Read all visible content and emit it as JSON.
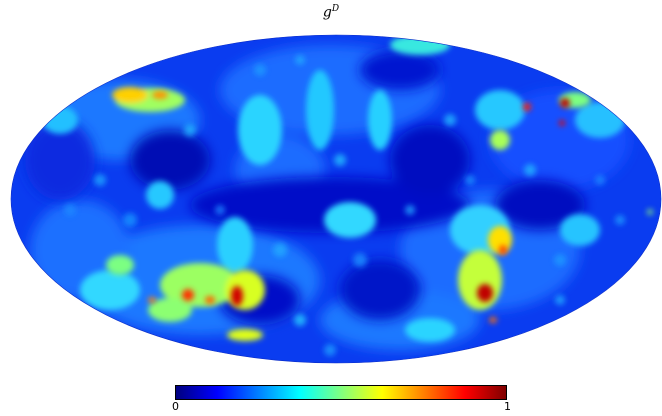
{
  "title": {
    "base": "g",
    "superscript": "D"
  },
  "projection": "mollweide",
  "colorbar": {
    "colormap": "jet",
    "min_label": "0",
    "max_label": "1",
    "stops": [
      "#00007f",
      "#0000ff",
      "#0080ff",
      "#00ffff",
      "#80ff80",
      "#ffff00",
      "#ff8000",
      "#ff0000",
      "#7f0000"
    ]
  }
}
